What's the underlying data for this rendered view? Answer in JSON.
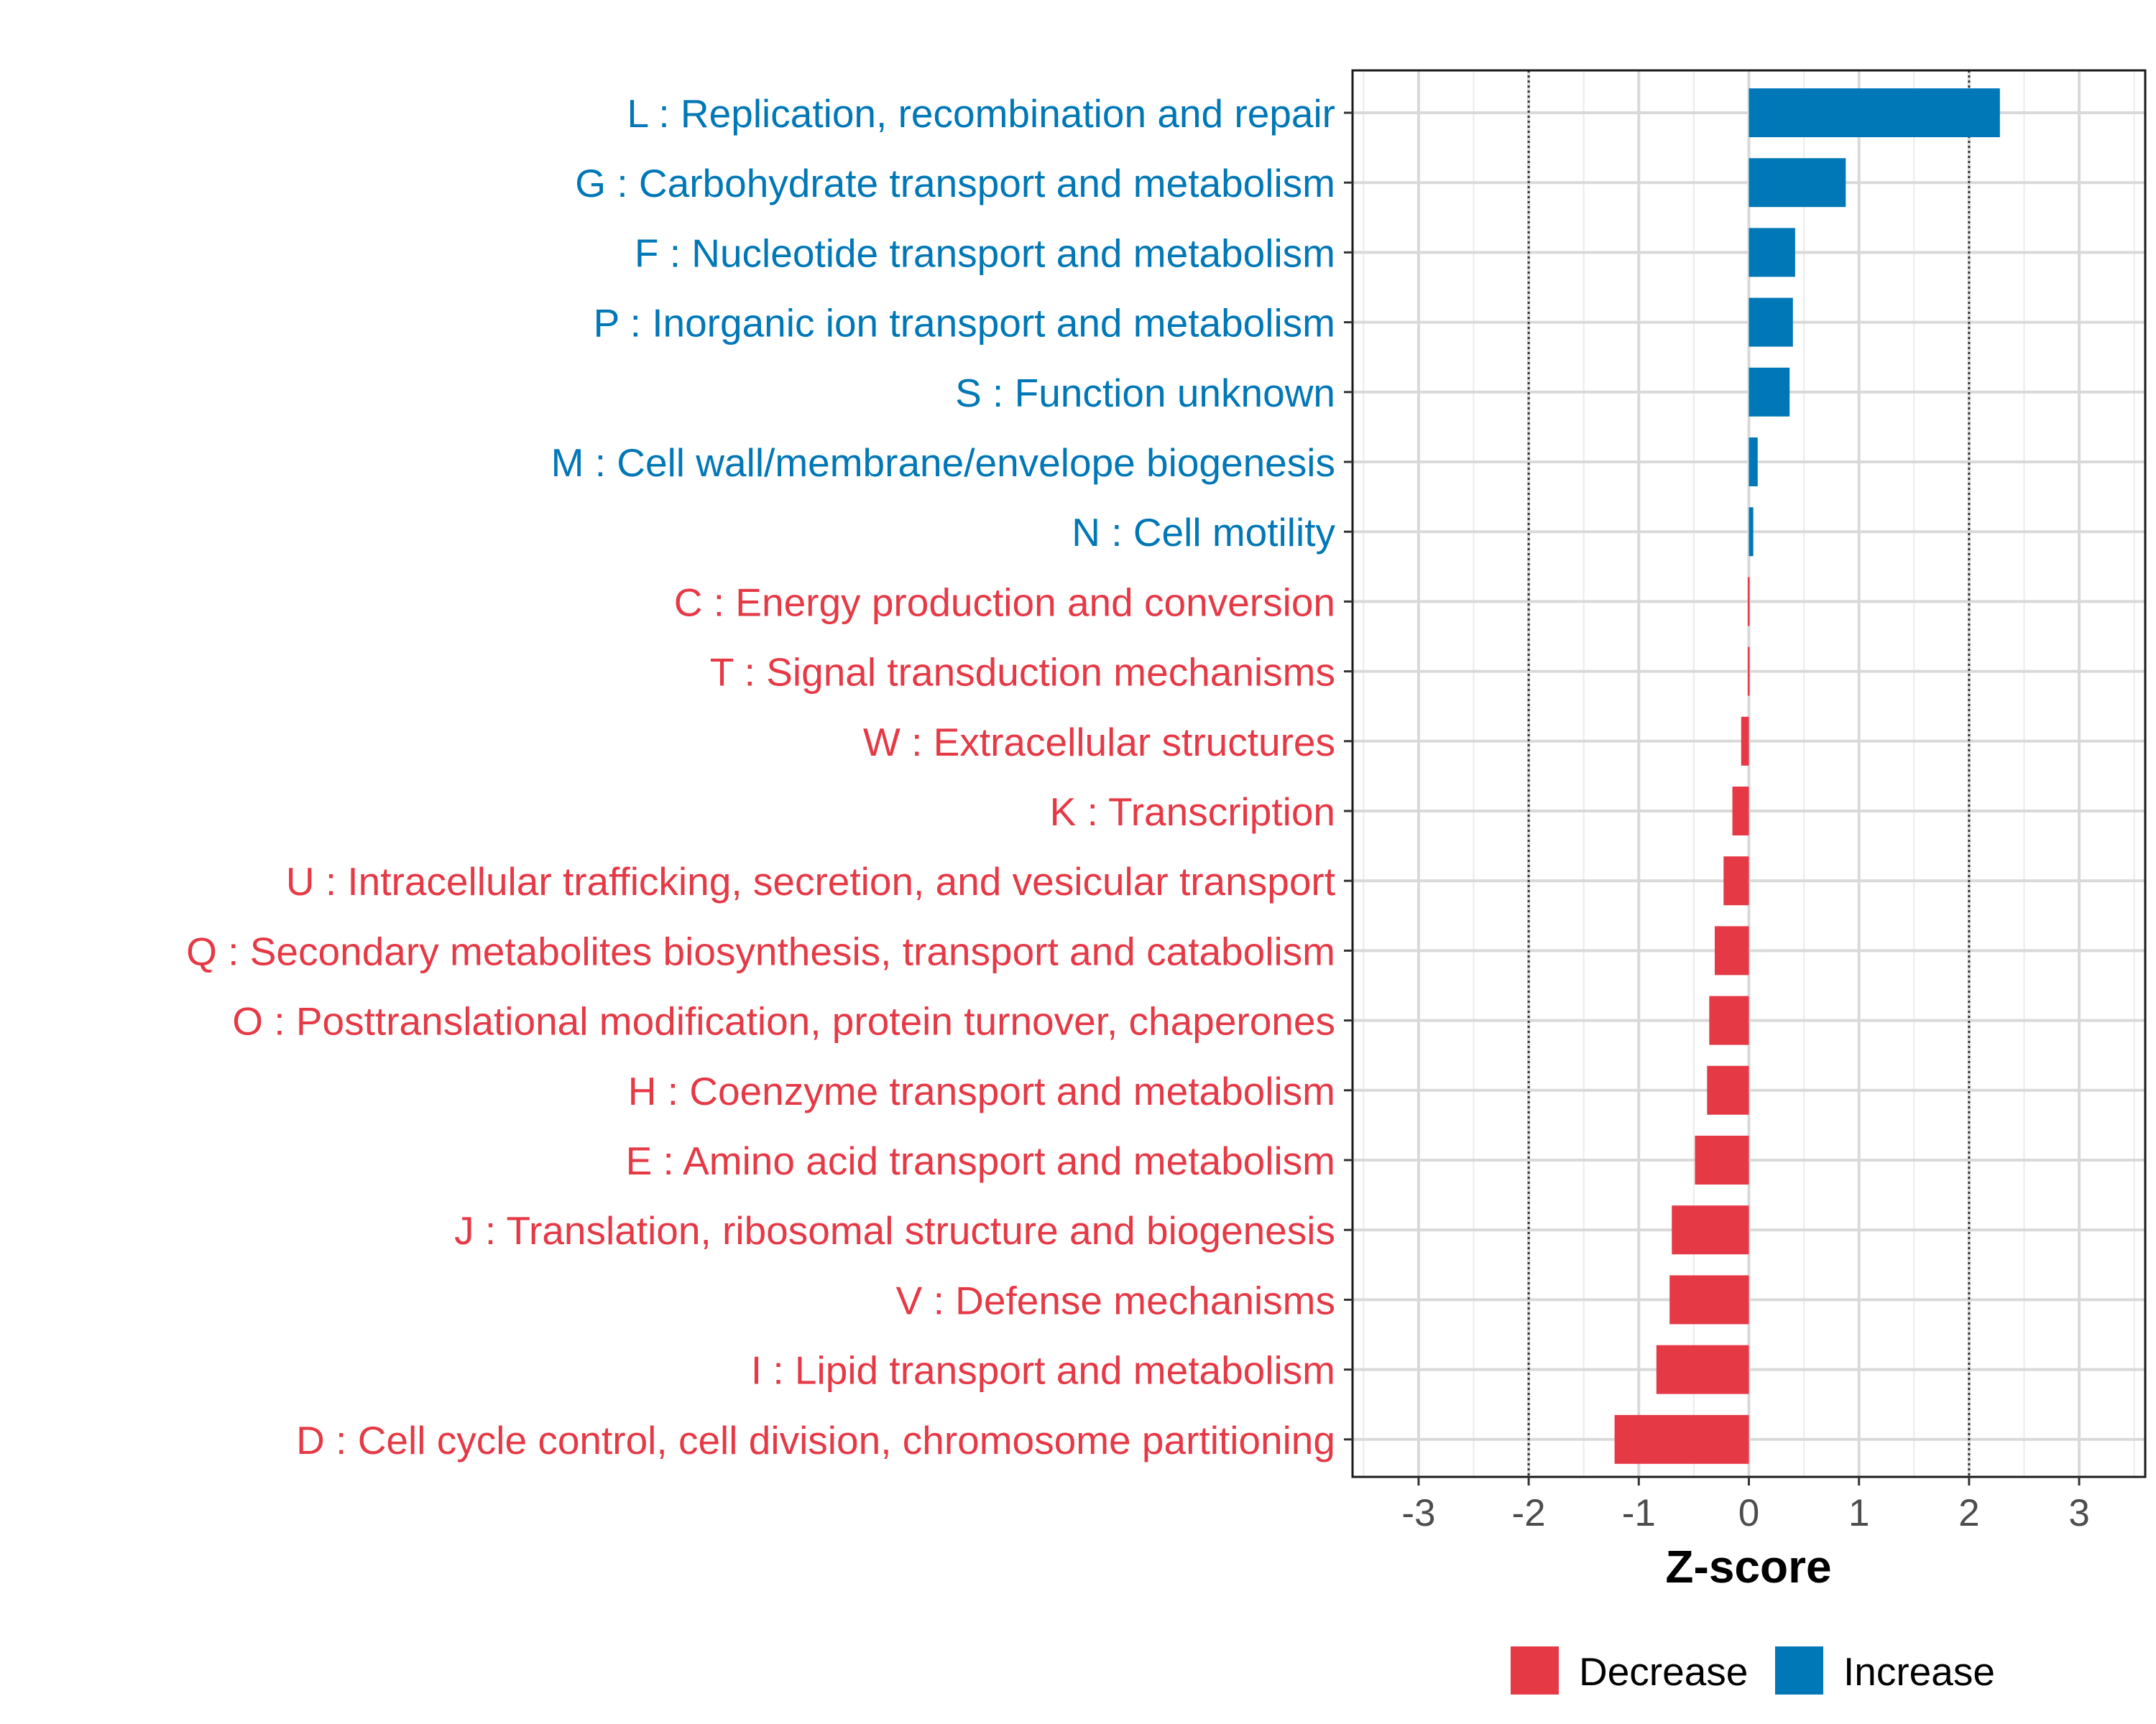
{
  "chart_data": {
    "type": "bar",
    "orientation": "horizontal",
    "title": "",
    "xlabel": "Z-score",
    "ylabel": "",
    "xlim": [
      -3.6,
      3.6
    ],
    "xticks": [
      -3,
      -2,
      -1,
      0,
      1,
      2,
      3
    ],
    "xtick_labels": [
      "-3",
      "-2",
      "-1",
      "0",
      "1",
      "2",
      "3"
    ],
    "reference_lines": [
      -2,
      2
    ],
    "grid": true,
    "legend_position": "bottom",
    "colors": {
      "Decrease": "#E63946",
      "Increase": "#0077B6"
    },
    "categories": [
      "L : Replication, recombination and repair",
      "G : Carbohydrate transport and metabolism",
      "F : Nucleotide transport and metabolism",
      "P : Inorganic ion transport and metabolism",
      "S : Function unknown",
      "M : Cell wall/membrane/envelope biogenesis",
      "N : Cell motility",
      "C : Energy production and conversion",
      "T : Signal transduction mechanisms",
      "W : Extracellular structures",
      "K : Transcription",
      "U : Intracellular trafficking, secretion, and vesicular transport",
      "Q : Secondary metabolites biosynthesis, transport and catabolism",
      "O : Posttranslational modification, protein turnover, chaperones",
      "H : Coenzyme transport and metabolism",
      "E : Amino acid transport and metabolism",
      "J : Translation, ribosomal structure and biogenesis",
      "V : Defense mechanisms",
      "I : Lipid transport and metabolism",
      "D : Cell cycle control, cell division, chromosome partitioning"
    ],
    "values": [
      2.28,
      0.88,
      0.42,
      0.4,
      0.37,
      0.08,
      0.04,
      -0.01,
      -0.01,
      -0.07,
      -0.15,
      -0.23,
      -0.31,
      -0.36,
      -0.38,
      -0.49,
      -0.7,
      -0.72,
      -0.84,
      -1.22
    ],
    "groups": [
      "Increase",
      "Increase",
      "Increase",
      "Increase",
      "Increase",
      "Increase",
      "Increase",
      "Decrease",
      "Decrease",
      "Decrease",
      "Decrease",
      "Decrease",
      "Decrease",
      "Decrease",
      "Decrease",
      "Decrease",
      "Decrease",
      "Decrease",
      "Decrease",
      "Decrease"
    ],
    "legend": [
      {
        "label": "Decrease",
        "color": "#E63946"
      },
      {
        "label": "Increase",
        "color": "#0077B6"
      }
    ]
  }
}
